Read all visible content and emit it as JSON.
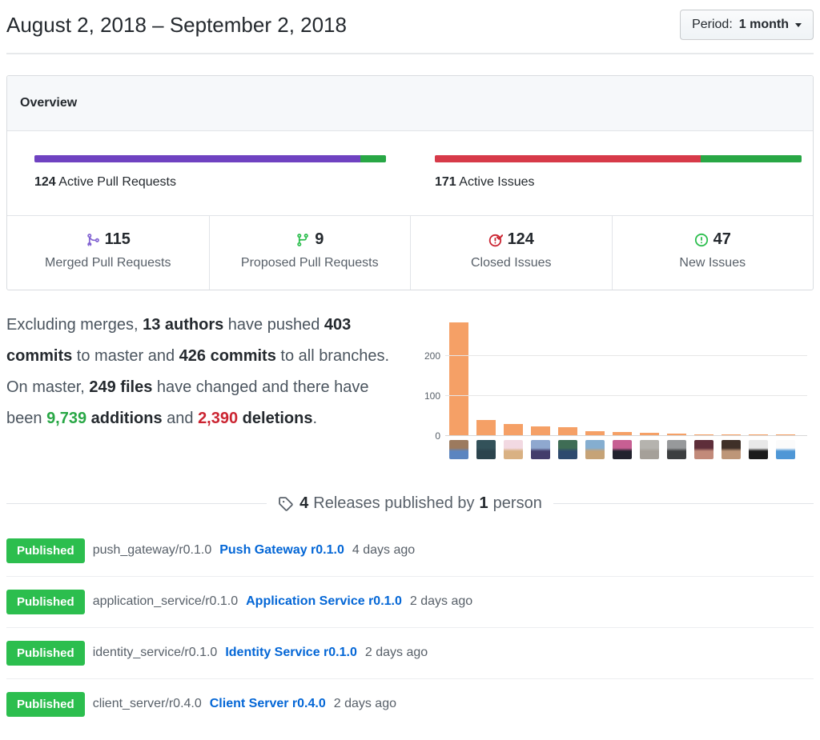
{
  "colors": {
    "merged_purple": "#6f42c1",
    "proposed_green": "#28a745",
    "closed_red": "#d73a49",
    "new_green": "#28a745",
    "badge_green": "#2cbe4e",
    "link_blue": "#0366d6",
    "bar_orange": "#f5a066"
  },
  "header": {
    "title": "August 2, 2018 – September 2, 2018",
    "period_label": "Period:",
    "period_value": "1 month"
  },
  "overview": {
    "title": "Overview",
    "pull_requests": {
      "active": "124",
      "label": "Active Pull Requests",
      "merged": 115,
      "proposed": 9
    },
    "issues": {
      "active": "171",
      "label": "Active Issues",
      "closed": 124,
      "new": 47
    },
    "stats": [
      {
        "icon": "git-merge-icon",
        "icon_color": "#8263d2",
        "value": "115",
        "label": "Merged Pull Requests"
      },
      {
        "icon": "git-branch-icon",
        "icon_color": "#2cbe4e",
        "value": "9",
        "label": "Proposed Pull Requests"
      },
      {
        "icon": "issue-closed-icon",
        "icon_color": "#cb2431",
        "value": "124",
        "label": "Closed Issues"
      },
      {
        "icon": "issue-opened-icon",
        "icon_color": "#2cbe4e",
        "value": "47",
        "label": "New Issues"
      }
    ]
  },
  "summary": {
    "segments": [
      {
        "text": "Excluding merges, "
      },
      {
        "text": "13 authors",
        "bold": true
      },
      {
        "text": " have pushed "
      },
      {
        "text": "403 commits",
        "bold": true
      },
      {
        "text": " to master and "
      },
      {
        "text": "426 commits",
        "bold": true
      },
      {
        "text": " to all branches. On master, "
      },
      {
        "text": "249 files",
        "bold": true
      },
      {
        "text": " have changed and there have been "
      },
      {
        "text": "9,739",
        "bold": true,
        "color": "#28a745"
      },
      {
        "text": " additions",
        "bold": true
      },
      {
        "text": " and "
      },
      {
        "text": "2,390",
        "bold": true,
        "color": "#cb2431"
      },
      {
        "text": " deletions",
        "bold": true
      },
      {
        "text": "."
      }
    ]
  },
  "chart_data": {
    "type": "bar",
    "title": "Commits per author (estimated from bar heights)",
    "categories": [
      "author-1",
      "author-2",
      "author-3",
      "author-4",
      "author-5",
      "author-6",
      "author-7",
      "author-8",
      "author-9",
      "author-10",
      "author-11",
      "author-12",
      "author-13"
    ],
    "values": [
      283,
      40,
      29,
      24,
      22,
      12,
      9,
      7,
      5,
      3,
      3,
      3,
      2
    ],
    "xlabel": "",
    "ylabel": "",
    "yticks": [
      0,
      100,
      200
    ],
    "ylim": [
      0,
      300
    ],
    "grid": true,
    "legend": false,
    "bar_color": "#f5a066",
    "avatars": [
      {
        "name": "avatar-author-1",
        "colors": [
          "#9c7a5e",
          "#5b85c0"
        ]
      },
      {
        "name": "avatar-author-2",
        "colors": [
          "#33525a",
          "#2c444d"
        ]
      },
      {
        "name": "avatar-author-3",
        "colors": [
          "#f2d9e2",
          "#d9b183"
        ]
      },
      {
        "name": "avatar-author-4",
        "colors": [
          "#8fa8cf",
          "#433d6b"
        ]
      },
      {
        "name": "avatar-author-5",
        "colors": [
          "#3f6d55",
          "#2e4a6e"
        ]
      },
      {
        "name": "avatar-author-6",
        "colors": [
          "#85aed0",
          "#c6a377"
        ]
      },
      {
        "name": "avatar-author-7",
        "colors": [
          "#c75f93",
          "#22222e"
        ]
      },
      {
        "name": "avatar-author-8",
        "colors": [
          "#b5b3ae",
          "#a5a099"
        ]
      },
      {
        "name": "avatar-author-9",
        "colors": [
          "#97999b",
          "#3c3e40"
        ]
      },
      {
        "name": "avatar-author-10",
        "colors": [
          "#5e2e3a",
          "#c28a7a"
        ]
      },
      {
        "name": "avatar-author-11",
        "colors": [
          "#3f3028",
          "#bd9678"
        ]
      },
      {
        "name": "avatar-author-12",
        "colors": [
          "#e8e8e8",
          "#1c1c1c"
        ]
      },
      {
        "name": "avatar-author-13",
        "colors": [
          "#fbfbfb",
          "#4f97d6"
        ]
      }
    ]
  },
  "releases": {
    "divider": {
      "icon": "tag-icon",
      "count": "4",
      "text1": "Releases published by",
      "count2": "1",
      "text2": "person"
    },
    "items": [
      {
        "badge": "Published",
        "tag": "push_gateway/r0.1.0",
        "link": "Push Gateway r0.1.0",
        "time": "4 days ago"
      },
      {
        "badge": "Published",
        "tag": "application_service/r0.1.0",
        "link": "Application Service r0.1.0",
        "time": "2 days ago"
      },
      {
        "badge": "Published",
        "tag": "identity_service/r0.1.0",
        "link": "Identity Service r0.1.0",
        "time": "2 days ago"
      },
      {
        "badge": "Published",
        "tag": "client_server/r0.4.0",
        "link": "Client Server r0.4.0",
        "time": "2 days ago"
      }
    ]
  }
}
